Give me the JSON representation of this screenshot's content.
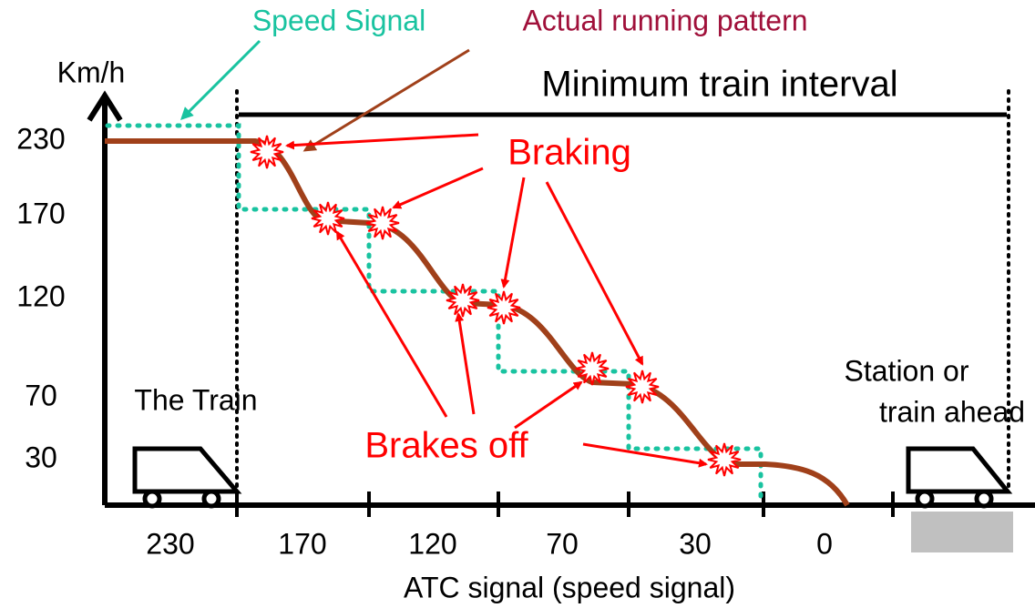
{
  "header": {
    "speed_signal": "Speed Signal",
    "actual_pattern": "Actual running pattern",
    "interval": "Minimum train interval"
  },
  "axis": {
    "unit": "Km/h",
    "y_labels": [
      "230",
      "170",
      "120",
      "70",
      "30"
    ],
    "x_labels": [
      "230",
      "170",
      "120",
      "70",
      "30",
      "0"
    ],
    "x_title": "ATC signal (speed signal)"
  },
  "annotations": {
    "braking": "Braking",
    "brakes_off": "Brakes off",
    "train": "The Train",
    "station_1": "Station or",
    "station_2": "train ahead"
  }
}
